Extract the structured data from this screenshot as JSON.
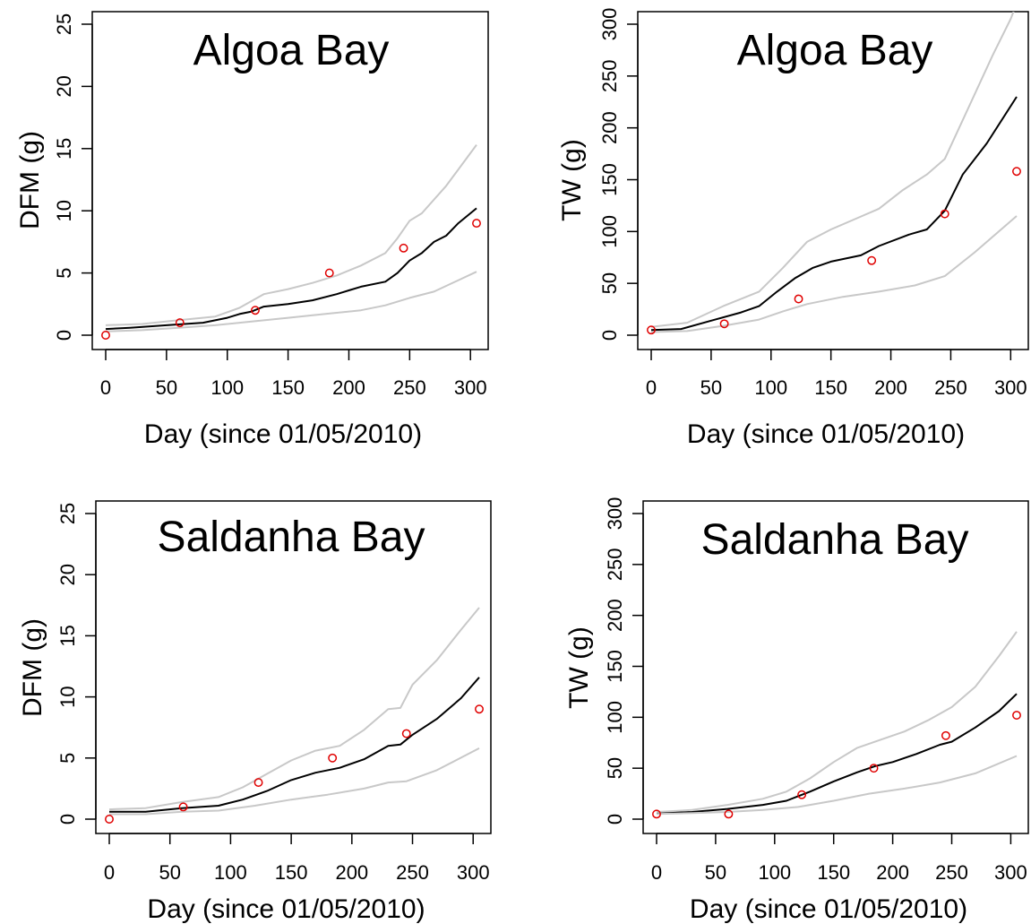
{
  "chart_data": [
    {
      "type": "line",
      "title": "Algoa Bay",
      "xlabel": "Day (since 01/05/2010)",
      "ylabel": "DFM (g)",
      "xlim": [
        0,
        305
      ],
      "ylim": [
        0,
        25
      ],
      "xticks": [
        0,
        50,
        100,
        150,
        200,
        250,
        300
      ],
      "yticks": [
        0,
        5,
        10,
        15,
        20,
        25
      ],
      "grid": false,
      "colors": {
        "mean": "#000000",
        "bounds": "#c8c8c8",
        "observed": "#e00000"
      },
      "series": [
        {
          "role": "mean",
          "x": [
            0,
            20,
            50,
            80,
            100,
            110,
            120,
            130,
            150,
            170,
            190,
            200,
            210,
            230,
            240,
            250,
            260,
            270,
            280,
            290,
            305
          ],
          "y": [
            0.5,
            0.6,
            0.8,
            1.0,
            1.4,
            1.7,
            1.9,
            2.3,
            2.5,
            2.8,
            3.3,
            3.6,
            3.9,
            4.3,
            5.0,
            6.0,
            6.6,
            7.5,
            8.0,
            9.0,
            10.2
          ]
        },
        {
          "role": "upper",
          "x": [
            0,
            30,
            60,
            90,
            110,
            130,
            150,
            170,
            190,
            210,
            230,
            240,
            250,
            260,
            280,
            305
          ],
          "y": [
            0.8,
            0.9,
            1.2,
            1.5,
            2.2,
            3.3,
            3.7,
            4.2,
            4.8,
            5.6,
            6.6,
            7.8,
            9.2,
            9.8,
            12.0,
            15.3
          ]
        },
        {
          "role": "lower",
          "x": [
            0,
            30,
            60,
            90,
            120,
            150,
            180,
            210,
            230,
            250,
            270,
            305
          ],
          "y": [
            0.3,
            0.4,
            0.6,
            0.8,
            1.1,
            1.4,
            1.7,
            2.0,
            2.4,
            3.0,
            3.5,
            5.1
          ]
        },
        {
          "role": "observed",
          "x": [
            0,
            61,
            123,
            184,
            245,
            305
          ],
          "y": [
            0,
            1,
            2,
            5,
            7,
            9
          ]
        }
      ]
    },
    {
      "type": "line",
      "title": "Algoa Bay",
      "xlabel": "Day (since 01/05/2010)",
      "ylabel": "TW (g)",
      "xlim": [
        0,
        305
      ],
      "ylim": [
        0,
        300
      ],
      "xticks": [
        0,
        50,
        100,
        150,
        200,
        250,
        300
      ],
      "yticks": [
        0,
        50,
        100,
        150,
        200,
        250,
        300
      ],
      "grid": false,
      "colors": {
        "mean": "#000000",
        "bounds": "#c8c8c8",
        "observed": "#e00000"
      },
      "series": [
        {
          "role": "mean",
          "x": [
            0,
            25,
            50,
            75,
            90,
            105,
            120,
            135,
            150,
            175,
            190,
            215,
            230,
            245,
            260,
            280,
            305
          ],
          "y": [
            5,
            6,
            14,
            22,
            28,
            42,
            55,
            65,
            71,
            77,
            86,
            97,
            102,
            120,
            155,
            185,
            230
          ]
        },
        {
          "role": "upper",
          "x": [
            0,
            30,
            60,
            90,
            110,
            130,
            150,
            170,
            190,
            210,
            230,
            245,
            265,
            285,
            300,
            305
          ],
          "y": [
            8,
            12,
            28,
            42,
            65,
            90,
            102,
            112,
            122,
            140,
            155,
            170,
            220,
            270,
            305,
            320
          ]
        },
        {
          "role": "lower",
          "x": [
            0,
            30,
            60,
            90,
            110,
            130,
            160,
            190,
            220,
            245,
            270,
            305
          ],
          "y": [
            3,
            4,
            9,
            15,
            23,
            30,
            37,
            42,
            48,
            57,
            80,
            115
          ]
        },
        {
          "role": "observed",
          "x": [
            0,
            61,
            123,
            184,
            245,
            305
          ],
          "y": [
            5,
            11,
            35,
            72,
            117,
            158
          ]
        }
      ]
    },
    {
      "type": "line",
      "title": "Saldanha Bay",
      "xlabel": "Day (since 01/05/2010)",
      "ylabel": "DFM (g)",
      "xlim": [
        0,
        305
      ],
      "ylim": [
        0,
        25
      ],
      "xticks": [
        0,
        50,
        100,
        150,
        200,
        250,
        300
      ],
      "yticks": [
        0,
        5,
        10,
        15,
        20,
        25
      ],
      "grid": false,
      "colors": {
        "mean": "#000000",
        "bounds": "#c8c8c8",
        "observed": "#e00000"
      },
      "series": [
        {
          "role": "mean",
          "x": [
            0,
            30,
            60,
            90,
            110,
            130,
            150,
            170,
            190,
            210,
            230,
            240,
            250,
            270,
            290,
            305
          ],
          "y": [
            0.6,
            0.6,
            0.9,
            1.1,
            1.6,
            2.3,
            3.2,
            3.8,
            4.2,
            4.9,
            6.0,
            6.1,
            6.9,
            8.2,
            9.9,
            11.6
          ]
        },
        {
          "role": "upper",
          "x": [
            0,
            30,
            60,
            90,
            110,
            130,
            150,
            170,
            190,
            210,
            230,
            240,
            250,
            270,
            290,
            305
          ],
          "y": [
            0.8,
            0.9,
            1.4,
            1.8,
            2.6,
            3.7,
            4.8,
            5.6,
            6.0,
            7.3,
            9.0,
            9.1,
            11.0,
            13.0,
            15.5,
            17.3
          ]
        },
        {
          "role": "lower",
          "x": [
            0,
            30,
            60,
            90,
            120,
            150,
            180,
            210,
            230,
            245,
            270,
            305
          ],
          "y": [
            0.4,
            0.4,
            0.6,
            0.7,
            1.1,
            1.6,
            2.0,
            2.5,
            3.0,
            3.1,
            4.0,
            5.8
          ]
        },
        {
          "role": "observed",
          "x": [
            0,
            61,
            123,
            184,
            245,
            305
          ],
          "y": [
            0,
            1,
            3,
            5,
            7,
            9
          ]
        }
      ]
    },
    {
      "type": "line",
      "title": "Saldanha Bay",
      "xlabel": "Day (since 01/05/2010)",
      "ylabel": "TW (g)",
      "xlim": [
        0,
        305
      ],
      "ylim": [
        0,
        300
      ],
      "xticks": [
        0,
        50,
        100,
        150,
        200,
        250,
        300
      ],
      "yticks": [
        0,
        50,
        100,
        150,
        200,
        250,
        300
      ],
      "grid": false,
      "colors": {
        "mean": "#000000",
        "bounds": "#c8c8c8",
        "observed": "#e00000"
      },
      "series": [
        {
          "role": "mean",
          "x": [
            0,
            30,
            60,
            90,
            110,
            130,
            150,
            170,
            185,
            200,
            220,
            240,
            250,
            270,
            290,
            305
          ],
          "y": [
            6,
            7,
            10,
            14,
            18,
            27,
            37,
            46,
            52,
            56,
            64,
            73,
            76,
            90,
            106,
            123
          ]
        },
        {
          "role": "upper",
          "x": [
            0,
            30,
            60,
            90,
            110,
            130,
            150,
            170,
            190,
            210,
            230,
            250,
            270,
            290,
            305
          ],
          "y": [
            7,
            9,
            14,
            20,
            27,
            40,
            56,
            70,
            78,
            86,
            97,
            110,
            130,
            160,
            184
          ]
        },
        {
          "role": "lower",
          "x": [
            0,
            30,
            60,
            90,
            120,
            150,
            180,
            210,
            240,
            270,
            305
          ],
          "y": [
            5,
            6,
            7,
            9,
            12,
            18,
            25,
            30,
            36,
            45,
            62
          ]
        },
        {
          "role": "observed",
          "x": [
            0,
            61,
            123,
            184,
            245,
            305
          ],
          "y": [
            5,
            5,
            24,
            50,
            82,
            102
          ]
        }
      ]
    }
  ]
}
